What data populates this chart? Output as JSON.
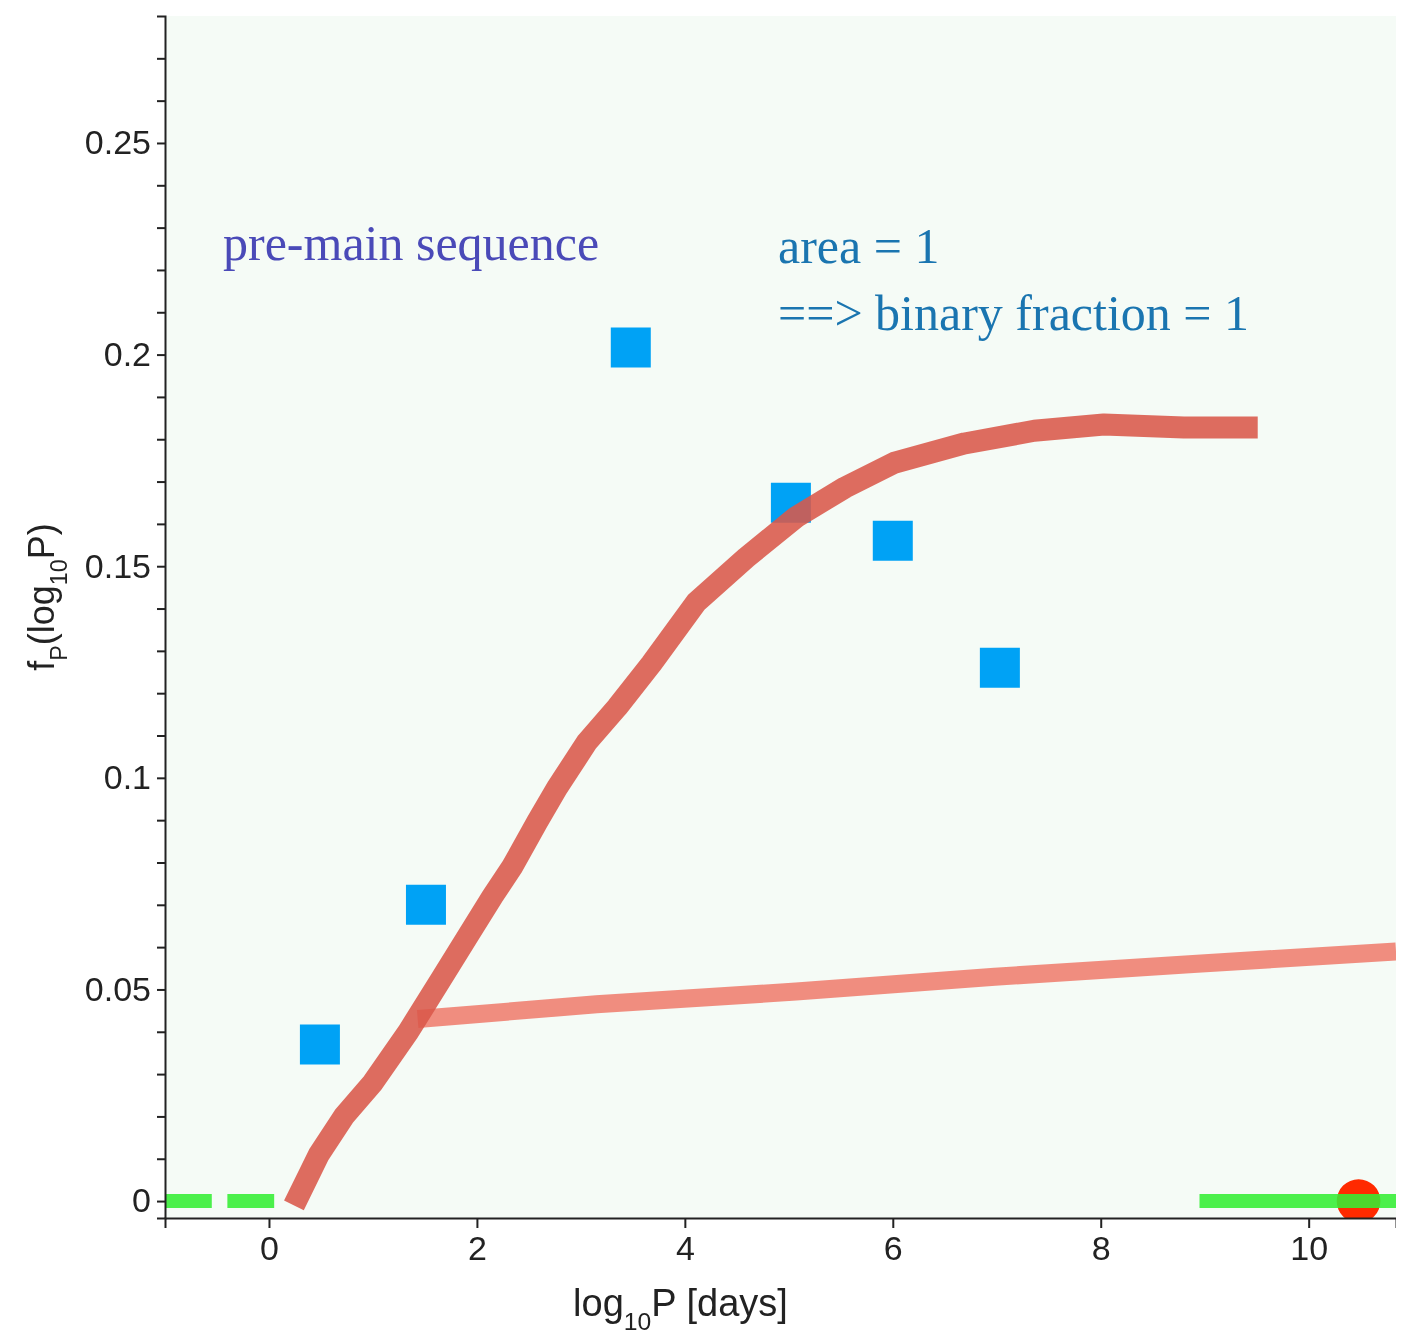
{
  "chart_data": {
    "type": "line",
    "xlabel": "log$_{10}$P [days]",
    "ylabel": "f$_{P}$(log$_{10}$P)",
    "xlim": [
      -1,
      10.84
    ],
    "ylim": [
      -0.004,
      0.28
    ],
    "xticks": [
      0,
      2,
      4,
      6,
      8,
      10
    ],
    "yticks": [
      0,
      {
        "value": 0.01,
        "label": null
      },
      {
        "value": 0.02,
        "label": null
      },
      {
        "value": 0.03,
        "label": null
      },
      {
        "value": 0.04,
        "label": null
      },
      0.05,
      {
        "value": 0.06,
        "label": null
      },
      {
        "value": 0.07,
        "label": null
      },
      {
        "value": 0.08,
        "label": null
      },
      {
        "value": 0.09,
        "label": null
      },
      0.1,
      {
        "value": 0.11,
        "label": null
      },
      {
        "value": 0.12,
        "label": null
      },
      {
        "value": 0.13,
        "label": null
      },
      {
        "value": 0.14,
        "label": null
      },
      0.15,
      {
        "value": 0.16,
        "label": null
      },
      {
        "value": 0.17,
        "label": null
      },
      {
        "value": 0.18,
        "label": null
      },
      {
        "value": 0.19,
        "label": null
      },
      0.2,
      {
        "value": 0.21,
        "label": null
      },
      {
        "value": 0.22,
        "label": null
      },
      {
        "value": 0.23,
        "label": null
      },
      {
        "value": 0.24,
        "label": null
      },
      0.25,
      {
        "value": 0.26,
        "label": null
      },
      {
        "value": 0.27,
        "label": null
      }
    ],
    "grid": false,
    "annotations": [
      "pre-main  sequence",
      "area = 1",
      "==> binary fraction = 1"
    ],
    "series": [
      {
        "color": "#33ee33",
        "x": [
          -1,
          -0.55,
          -0.5,
          -0.4,
          0.05,
          0.5,
          8.95,
          10.84
        ],
        "values": [
          0,
          0,
          null,
          0,
          0,
          null,
          0,
          0
        ]
      },
      {
        "color": "#ef7d6e",
        "x": [
          1.43,
          3.15,
          5.07,
          6.98,
          8.89,
          10.84
        ],
        "values": [
          0.043,
          0.0465,
          0.0495,
          0.053,
          0.056,
          0.059
        ]
      },
      {
        "color": "#d9584a",
        "x": [
          0.24,
          0.48,
          0.72,
          1.0,
          1.34,
          1.67,
          1.91,
          2.15,
          2.34,
          2.58,
          2.77,
          3.06,
          3.35,
          3.68,
          4.11,
          4.59,
          5.07,
          5.54,
          6.02,
          6.69,
          7.36,
          8.03,
          8.8,
          9.51
        ],
        "values": [
          -0.001,
          0.011,
          0.02,
          0.028,
          0.04,
          0.053,
          0.0625,
          0.072,
          0.079,
          0.0896,
          0.0976,
          0.1085,
          0.1167,
          0.127,
          0.1415,
          0.152,
          0.1616,
          0.1686,
          0.1745,
          0.179,
          0.182,
          0.1835,
          0.1828,
          0.1828
        ]
      },
      {
        "type": "scatter",
        "marker": "square",
        "color": "#00a2f5",
        "x": [
          0.49,
          1.51,
          3.48,
          5.02,
          6.0,
          7.03
        ],
        "values": [
          0.037,
          0.07,
          0.2017,
          0.165,
          0.156,
          0.126
        ]
      },
      {
        "type": "scatter",
        "marker": "circle",
        "color": "#ff2a00",
        "x": [
          10.48
        ],
        "values": [
          0
        ]
      }
    ]
  }
}
